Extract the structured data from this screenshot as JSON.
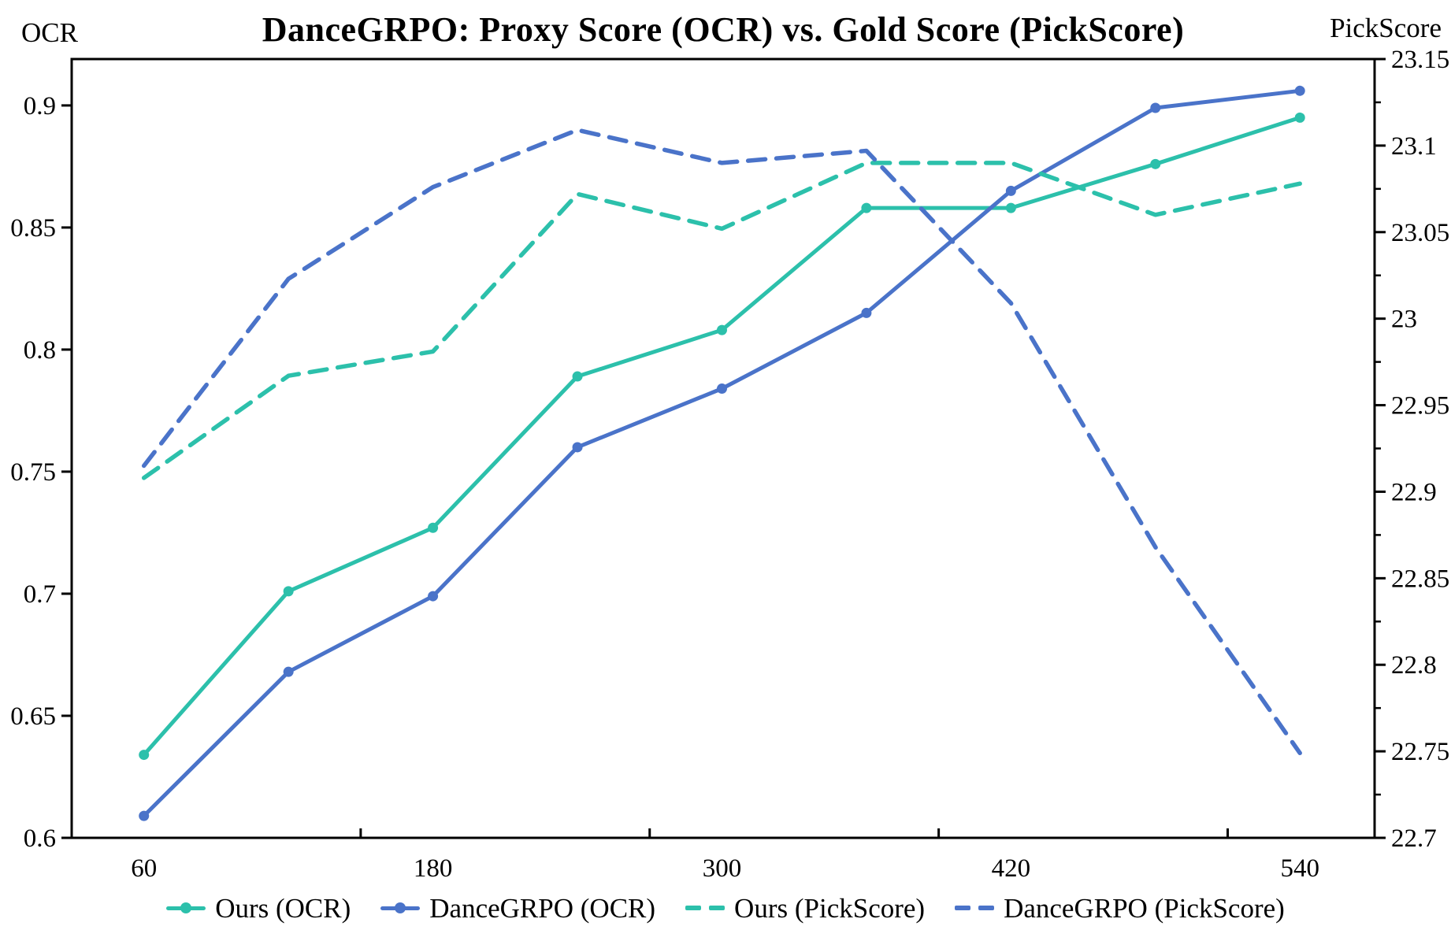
{
  "chart_data": {
    "type": "line",
    "title": "DanceGRPO: Proxy Score (OCR) vs. Gold Score (PickScore)",
    "left_axis_label": "OCR",
    "right_axis_label": "PickScore",
    "x": [
      60,
      120,
      180,
      240,
      300,
      360,
      420,
      480,
      540
    ],
    "xlim": [
      30,
      571
    ],
    "ylim_left": [
      0.6,
      0.919
    ],
    "ylim_right": [
      22.7,
      23.15
    ],
    "grid": false,
    "legend_position": "bottom-center",
    "axes": {
      "x": {
        "tick_values": [
          60,
          180,
          300,
          420,
          540
        ],
        "tick_labels": [
          "60",
          "180",
          "300",
          "420",
          "540"
        ],
        "minor_tick_values": [
          150,
          270,
          390,
          510
        ]
      },
      "left": {
        "tick_values": [
          0.6,
          0.65,
          0.7,
          0.75,
          0.8,
          0.85,
          0.9
        ],
        "tick_labels": [
          "0.6",
          "0.65",
          "0.7",
          "0.75",
          "0.8",
          "0.85",
          "0.9"
        ]
      },
      "right": {
        "tick_values": [
          22.7,
          22.75,
          22.8,
          22.85,
          22.9,
          22.95,
          23.0,
          23.05,
          23.1,
          23.15
        ],
        "tick_labels": [
          "22.7",
          "22.75",
          "22.8",
          "22.85",
          "22.9",
          "22.95",
          "23",
          "23.05",
          "23.1",
          "23.15"
        ],
        "minor_tick_values": [
          22.725,
          22.775,
          22.825,
          22.875,
          22.925,
          22.975,
          23.025,
          23.075,
          23.125
        ]
      }
    },
    "series": [
      {
        "name": "Ours (OCR)",
        "axis": "left",
        "style": "solid",
        "marker": true,
        "color": "#2cc0ab",
        "values": [
          0.634,
          0.701,
          0.727,
          0.789,
          0.808,
          0.858,
          0.858,
          0.876,
          0.895
        ]
      },
      {
        "name": "DanceGRPO (OCR)",
        "axis": "left",
        "style": "solid",
        "marker": true,
        "color": "#4a73c9",
        "values": [
          0.609,
          0.668,
          0.699,
          0.76,
          0.784,
          0.815,
          0.865,
          0.899,
          0.906
        ]
      },
      {
        "name": "Ours (PickScore)",
        "axis": "right",
        "style": "dashed",
        "marker": false,
        "color": "#2cc0ab",
        "values": [
          22.908,
          22.967,
          22.981,
          23.072,
          23.052,
          23.09,
          23.09,
          23.06,
          23.078
        ]
      },
      {
        "name": "DanceGRPO (PickScore)",
        "axis": "right",
        "style": "dashed",
        "marker": false,
        "color": "#4a73c9",
        "values": [
          22.915,
          23.023,
          23.076,
          23.109,
          23.09,
          23.097,
          23.009,
          22.868,
          22.749
        ]
      }
    ]
  }
}
